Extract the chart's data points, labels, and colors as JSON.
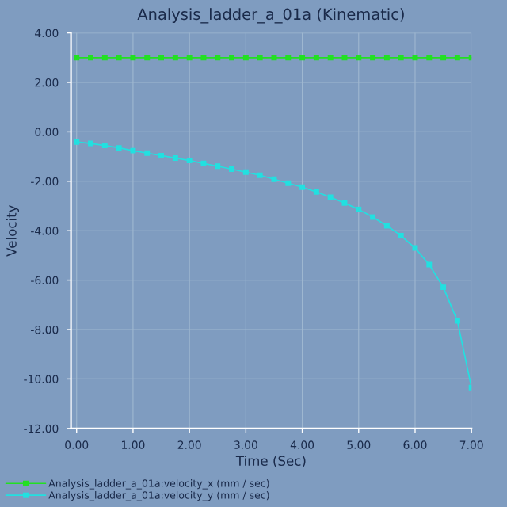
{
  "chart_data": {
    "type": "line",
    "title": "Analysis_ladder_a_01a (Kinematic)",
    "xlabel": "Time (Sec)",
    "ylabel": "Velocity",
    "x": [
      0,
      0.25,
      0.5,
      0.75,
      1.0,
      1.25,
      1.5,
      1.75,
      2.0,
      2.25,
      2.5,
      2.75,
      3.0,
      3.25,
      3.5,
      3.75,
      4.0,
      4.25,
      4.5,
      4.75,
      5.0,
      5.25,
      5.5,
      5.75,
      6.0,
      6.25,
      6.5,
      6.75,
      7.0
    ],
    "series": [
      {
        "name": "Analysis_ladder_a_01a:velocity_x (mm / sec)",
        "color": "#22e022",
        "values": [
          3.0,
          3.0,
          3.0,
          3.0,
          3.0,
          3.0,
          3.0,
          3.0,
          3.0,
          3.0,
          3.0,
          3.0,
          3.0,
          3.0,
          3.0,
          3.0,
          3.0,
          3.0,
          3.0,
          3.0,
          3.0,
          3.0,
          3.0,
          3.0,
          3.0,
          3.0,
          3.0,
          3.0,
          3.0
        ]
      },
      {
        "name": "Analysis_ladder_a_01a:velocity_y (mm / sec)",
        "color": "#22e0e0",
        "values": [
          -0.41,
          -0.47,
          -0.55,
          -0.65,
          -0.76,
          -0.86,
          -0.96,
          -1.06,
          -1.16,
          -1.28,
          -1.39,
          -1.51,
          -1.63,
          -1.76,
          -1.92,
          -2.08,
          -2.24,
          -2.43,
          -2.65,
          -2.88,
          -3.14,
          -3.45,
          -3.8,
          -4.2,
          -4.7,
          -5.37,
          -6.29,
          -7.65,
          -10.35
        ]
      }
    ],
    "xlim": [
      -0.1,
      7.0
    ],
    "ylim": [
      -12.0,
      4.0
    ],
    "xticks": [
      {
        "value": 0,
        "label": "0.00"
      },
      {
        "value": 1,
        "label": "1.00"
      },
      {
        "value": 2,
        "label": "2.00"
      },
      {
        "value": 3,
        "label": "3.00"
      },
      {
        "value": 4,
        "label": "4.00"
      },
      {
        "value": 5,
        "label": "5.00"
      },
      {
        "value": 6,
        "label": "6.00"
      },
      {
        "value": 7,
        "label": "7.00"
      }
    ],
    "yticks": [
      {
        "value": -12,
        "label": "-12.00"
      },
      {
        "value": -10,
        "label": "-10.00"
      },
      {
        "value": -8,
        "label": "-8.00"
      },
      {
        "value": -6,
        "label": "-6.00"
      },
      {
        "value": -4,
        "label": "-4.00"
      },
      {
        "value": -2,
        "label": "-2.00"
      },
      {
        "value": 0,
        "label": "0.00"
      },
      {
        "value": 2,
        "label": "2.00"
      },
      {
        "value": 4,
        "label": "4.00"
      }
    ],
    "grid": true,
    "legend": "bottom left",
    "marker": "square",
    "line_style": "solid"
  }
}
